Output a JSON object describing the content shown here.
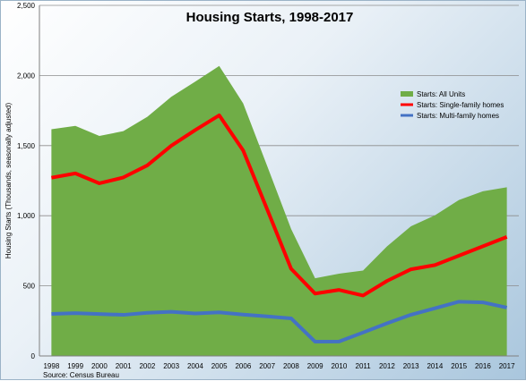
{
  "chart_data": {
    "type": "area",
    "title": "Housing Starts, 1998-2017",
    "ylabel": "Housing Starts (Thousands, seasonally adjusted)",
    "xlabel": "",
    "source": "Source: Census Bureau",
    "categories": [
      "1998",
      "1999",
      "2000",
      "2001",
      "2002",
      "2003",
      "2004",
      "2005",
      "2006",
      "2007",
      "2008",
      "2009",
      "2010",
      "2011",
      "2012",
      "2013",
      "2014",
      "2015",
      "2016",
      "2017"
    ],
    "y_ticks": [
      "0",
      "500",
      "1,000",
      "1,500",
      "2,000",
      "2,500"
    ],
    "ylim": [
      0,
      2500
    ],
    "grid": true,
    "legend_position": "right",
    "series": [
      {
        "name": "Starts: All Units",
        "kind": "area",
        "color": "#70ad47",
        "values": [
          1617,
          1641,
          1569,
          1603,
          1705,
          1848,
          1956,
          2068,
          1801,
          1355,
          906,
          554,
          587,
          609,
          781,
          925,
          1003,
          1112,
          1174,
          1203
        ]
      },
      {
        "name": "Starts: Single-family homes",
        "kind": "line",
        "color": "#ff0000",
        "values": [
          1271,
          1302,
          1231,
          1273,
          1359,
          1499,
          1611,
          1716,
          1465,
          1046,
          622,
          445,
          471,
          431,
          535,
          618,
          648,
          715,
          782,
          849
        ]
      },
      {
        "name": "Starts: Multi-family homes",
        "kind": "line",
        "color": "#4472c4",
        "values": [
          300,
          305,
          299,
          293,
          308,
          315,
          303,
          311,
          295,
          282,
          268,
          102,
          103,
          167,
          233,
          294,
          340,
          387,
          382,
          345
        ]
      }
    ]
  }
}
